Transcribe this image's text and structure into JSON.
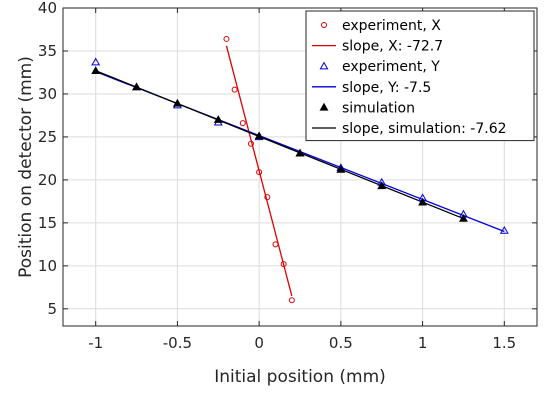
{
  "chart_data": {
    "type": "scatter",
    "xlabel": "Initial position (mm)",
    "ylabel": "Position on detector (mm)",
    "xlim": [
      -1.2,
      1.7
    ],
    "ylim": [
      3,
      40
    ],
    "x_ticks": [
      -1,
      -0.5,
      0,
      0.5,
      1,
      1.5
    ],
    "x_tick_labels": [
      "-1",
      "-0.5",
      "0",
      "0.5",
      "1",
      "1.5"
    ],
    "y_ticks": [
      5,
      10,
      15,
      20,
      25,
      30,
      35,
      40
    ],
    "y_tick_labels": [
      "5",
      "10",
      "15",
      "20",
      "25",
      "30",
      "35",
      "40"
    ],
    "grid": true,
    "legend_position": "top-right",
    "series": [
      {
        "name": "experiment, X",
        "kind": "points",
        "marker": "circle",
        "color": "#e00000",
        "x": [
          -0.2,
          -0.15,
          -0.1,
          -0.05,
          0,
          0.05,
          0.1,
          0.15,
          0.2
        ],
        "y": [
          36.4,
          30.5,
          26.6,
          24.2,
          20.9,
          18.0,
          12.5,
          10.2,
          6.0
        ]
      },
      {
        "name": "slope, X: -72.7",
        "kind": "line",
        "color": "#e00000",
        "x": [
          -0.2,
          0.2
        ],
        "y": [
          35.6,
          6.5
        ]
      },
      {
        "name": "experiment, Y",
        "kind": "points",
        "marker": "triangle",
        "color": "#0000e0",
        "x": [
          -1,
          -0.75,
          -0.5,
          -0.25,
          0,
          0.25,
          0.5,
          0.75,
          1,
          1.25,
          1.5
        ],
        "y": [
          33.7,
          30.8,
          28.7,
          26.7,
          25.0,
          23.1,
          21.4,
          19.7,
          17.9,
          16.0,
          14.1
        ]
      },
      {
        "name": "slope, Y: -7.5",
        "kind": "line",
        "color": "#0000e0",
        "x": [
          -1,
          1.5
        ],
        "y": [
          32.6,
          14.0
        ]
      },
      {
        "name": "simulation",
        "kind": "points",
        "marker": "triangle-filled",
        "color": "#000000",
        "x": [
          -1,
          -0.75,
          -0.5,
          -0.25,
          0,
          0.25,
          0.5,
          0.75,
          1,
          1.25
        ],
        "y": [
          32.7,
          30.8,
          28.9,
          27.0,
          25.1,
          23.1,
          21.2,
          19.3,
          17.4,
          15.5
        ]
      },
      {
        "name": "slope, simulation: -7.62",
        "kind": "line",
        "color": "#000000",
        "x": [
          -1,
          1.25
        ],
        "y": [
          32.7,
          15.5
        ]
      }
    ]
  }
}
